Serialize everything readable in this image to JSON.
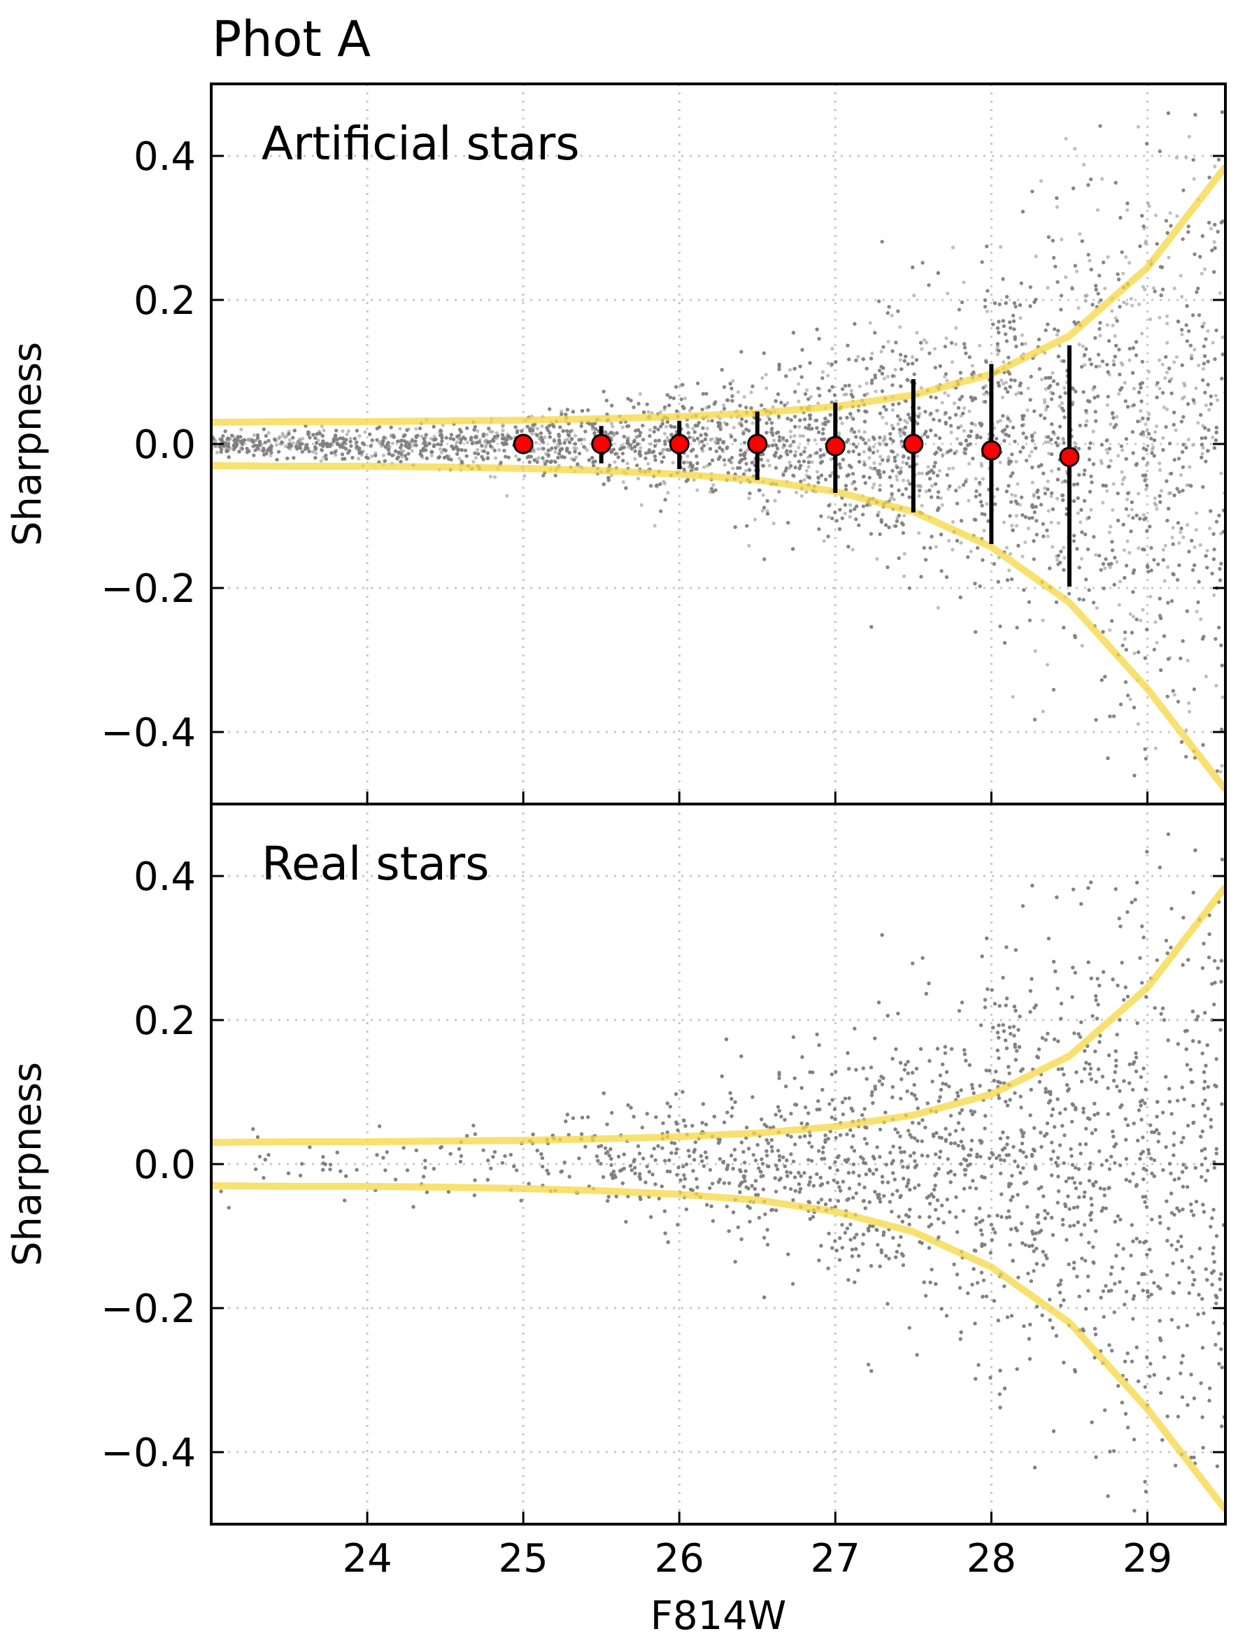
{
  "title": "Phot A",
  "x_axis": {
    "label": "F814W",
    "range": [
      23.0,
      29.5
    ],
    "ticks": [
      24,
      25,
      26,
      27,
      28,
      29
    ],
    "tick_labels": [
      "24",
      "25",
      "26",
      "27",
      "28",
      "29"
    ]
  },
  "colors": {
    "points": "#808080",
    "envelope": "#f5d742",
    "marker_fill": "#ff0000",
    "marker_edge": "#000000",
    "errorbar": "#000000",
    "grid": "#c8c8c8"
  },
  "chart_data": [
    {
      "type": "scatter",
      "panel": "top",
      "annotation": "Artificial stars",
      "xlabel": "",
      "ylabel": "Sharpness",
      "xlim": [
        23.0,
        29.5
      ],
      "ylim": [
        -0.5,
        0.5
      ],
      "yticks": [
        -0.4,
        -0.2,
        0.0,
        0.2,
        0.4
      ],
      "ytick_labels": [
        "−0.4",
        "−0.2",
        "0.0",
        "0.2",
        "0.4"
      ],
      "grid": true,
      "scatter_density": {
        "x": [
          23.0,
          24.0,
          25.0,
          26.0,
          27.0,
          28.0,
          29.0,
          29.5
        ],
        "spread": [
          0.01,
          0.015,
          0.025,
          0.045,
          0.08,
          0.14,
          0.25,
          0.35
        ],
        "relative_density": [
          0.6,
          0.7,
          0.8,
          1.0,
          1.3,
          1.6,
          1.6,
          1.4
        ]
      },
      "envelope": {
        "x": [
          23.0,
          23.5,
          24.0,
          24.5,
          25.0,
          25.5,
          26.0,
          26.5,
          27.0,
          27.5,
          28.0,
          28.5,
          29.0,
          29.5
        ],
        "upper": [
          0.03,
          0.031,
          0.031,
          0.032,
          0.033,
          0.035,
          0.038,
          0.043,
          0.052,
          0.068,
          0.097,
          0.15,
          0.245,
          0.385
        ],
        "lower": [
          -0.03,
          -0.031,
          -0.031,
          -0.032,
          -0.034,
          -0.037,
          -0.042,
          -0.05,
          -0.066,
          -0.094,
          -0.143,
          -0.22,
          -0.34,
          -0.48
        ]
      },
      "medians": {
        "x": [
          25.0,
          25.5,
          26.0,
          26.5,
          27.0,
          27.5,
          28.0,
          28.5
        ],
        "y": [
          0.0,
          0.0,
          0.0,
          0.0,
          -0.003,
          0.0,
          -0.009,
          -0.018
        ],
        "err_low": [
          0.01,
          0.027,
          0.035,
          0.05,
          0.065,
          0.095,
          0.13,
          0.18
        ],
        "err_high": [
          0.01,
          0.025,
          0.032,
          0.045,
          0.06,
          0.09,
          0.12,
          0.155
        ]
      }
    },
    {
      "type": "scatter",
      "panel": "bottom",
      "annotation": "Real stars",
      "xlabel": "F814W",
      "ylabel": "Sharpness",
      "xlim": [
        23.0,
        29.5
      ],
      "ylim": [
        -0.5,
        0.5
      ],
      "yticks": [
        -0.4,
        -0.2,
        0.0,
        0.2,
        0.4
      ],
      "ytick_labels": [
        "−0.4",
        "−0.2",
        "0.0",
        "0.2",
        "0.4"
      ],
      "grid": true,
      "scatter_density": {
        "x": [
          23.0,
          24.0,
          25.0,
          26.0,
          27.0,
          28.0,
          29.0,
          29.5
        ],
        "spread": [
          0.035,
          0.035,
          0.04,
          0.055,
          0.09,
          0.16,
          0.26,
          0.32
        ],
        "relative_density": [
          0.08,
          0.12,
          0.25,
          0.6,
          1.3,
          1.8,
          1.9,
          1.7
        ]
      },
      "envelope": {
        "x": [
          23.0,
          23.5,
          24.0,
          24.5,
          25.0,
          25.5,
          26.0,
          26.5,
          27.0,
          27.5,
          28.0,
          28.5,
          29.0,
          29.5
        ],
        "upper": [
          0.03,
          0.031,
          0.031,
          0.032,
          0.033,
          0.035,
          0.038,
          0.043,
          0.052,
          0.068,
          0.097,
          0.15,
          0.245,
          0.385
        ],
        "lower": [
          -0.03,
          -0.031,
          -0.031,
          -0.032,
          -0.034,
          -0.037,
          -0.042,
          -0.05,
          -0.066,
          -0.094,
          -0.143,
          -0.22,
          -0.34,
          -0.48
        ]
      }
    }
  ]
}
